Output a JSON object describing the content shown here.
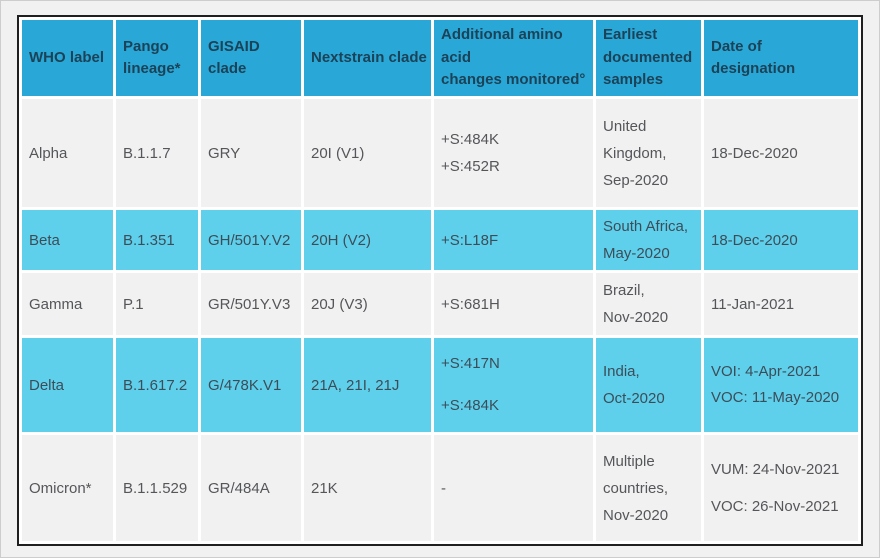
{
  "table": {
    "columns": [
      "WHO label",
      "Pango\nlineage*",
      "GISAID\nclade",
      "Nextstrain clade",
      "Additional amino\nacid\nchanges monitored°",
      "Earliest\ndocumented\nsamples",
      "Date of\ndesignation"
    ],
    "rows": [
      {
        "cells": [
          "Alpha",
          "B.1.1.7",
          "GRY",
          "20I (V1)",
          "+S:484K\n+S:452R",
          "United\nKingdom,\nSep-2020",
          "18-Dec-2020"
        ]
      },
      {
        "cells": [
          "Beta",
          "B.1.351",
          "GH/501Y.V2",
          "20H (V2)",
          "+S:L18F",
          "South Africa,\nMay-2020",
          "18-Dec-2020"
        ]
      },
      {
        "cells": [
          "Gamma",
          "P.1",
          "GR/501Y.V3",
          "20J (V3)",
          "+S:681H",
          "Brazil,\nNov-2020",
          "11-Jan-2021"
        ]
      },
      {
        "cells": [
          "Delta",
          "B.1.617.2",
          "G/478K.V1",
          "21A, 21I, 21J",
          "+S:417N\n+S:484K",
          "India,\nOct-2020",
          "VOI: 4-Apr-2021\nVOC: 11-May-2020"
        ]
      },
      {
        "cells": [
          "Omicron*",
          "B.1.1.529",
          "GR/484A",
          "21K",
          "-",
          "Multiple\ncountries,\nNov-2020",
          "VUM: 24-Nov-2021\nVOC: 26-Nov-2021"
        ]
      }
    ],
    "colors": {
      "header_bg": "#29a8d8",
      "row_highlight_bg": "#5fd0ec",
      "row_plain_bg": "#f1f1f1",
      "grid_lines": "#ffffff",
      "table_border": "#1f1f1f",
      "header_text": "#1c4257",
      "plain_row_text": "#55565a",
      "highlight_row_text": "#3c4d58",
      "page_bg": "#f1f1f1"
    }
  }
}
